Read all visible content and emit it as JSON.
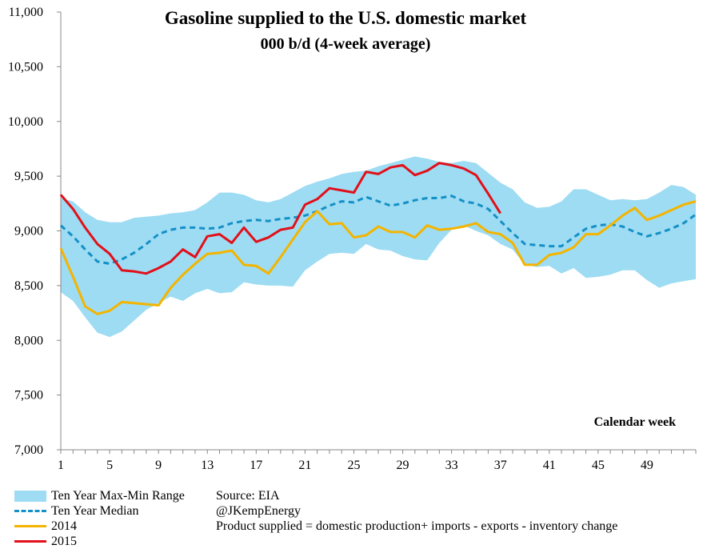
{
  "chart_data": {
    "type": "line",
    "title": "Gasoline supplied to the U.S. domestic market",
    "subtitle": "000 b/d (4-week average)",
    "xlabel": "Calendar week",
    "ylabel": "",
    "ylim": [
      7000,
      11000
    ],
    "xlim": [
      1,
      53
    ],
    "yticks": [
      "7,000",
      "7,500",
      "8,000",
      "8,500",
      "9,000",
      "9,500",
      "10,000",
      "10,500",
      "11,000"
    ],
    "ytick_values": [
      7000,
      7500,
      8000,
      8500,
      9000,
      9500,
      10000,
      10500,
      11000
    ],
    "xticks": [
      "1",
      "5",
      "9",
      "13",
      "17",
      "21",
      "25",
      "29",
      "33",
      "37",
      "41",
      "45",
      "49"
    ],
    "xtick_values": [
      1,
      5,
      9,
      13,
      17,
      21,
      25,
      29,
      33,
      37,
      41,
      45,
      49
    ],
    "grid": false,
    "legend_position": "bottom-left",
    "band": {
      "name": "Ten Year Max-Min Range",
      "color": "#9ddcf3",
      "x": [
        1,
        2,
        3,
        4,
        5,
        6,
        7,
        8,
        9,
        10,
        11,
        12,
        13,
        14,
        15,
        16,
        17,
        18,
        19,
        20,
        21,
        22,
        23,
        24,
        25,
        26,
        27,
        28,
        29,
        30,
        31,
        32,
        33,
        34,
        35,
        36,
        37,
        38,
        39,
        40,
        41,
        42,
        43,
        44,
        45,
        46,
        47,
        48,
        49,
        50,
        51,
        52,
        53
      ],
      "max": [
        9300,
        9270,
        9170,
        9100,
        9080,
        9080,
        9120,
        9130,
        9140,
        9160,
        9170,
        9190,
        9260,
        9350,
        9350,
        9330,
        9280,
        9260,
        9290,
        9350,
        9410,
        9450,
        9480,
        9520,
        9540,
        9550,
        9590,
        9620,
        9650,
        9680,
        9660,
        9630,
        9620,
        9640,
        9620,
        9530,
        9440,
        9380,
        9260,
        9210,
        9220,
        9270,
        9380,
        9380,
        9330,
        9280,
        9290,
        9280,
        9290,
        9350,
        9420,
        9400,
        9330
      ],
      "min": [
        8440,
        8360,
        8210,
        8070,
        8030,
        8080,
        8180,
        8280,
        8340,
        8400,
        8360,
        8430,
        8470,
        8430,
        8440,
        8530,
        8510,
        8500,
        8500,
        8490,
        8640,
        8720,
        8790,
        8800,
        8790,
        8880,
        8830,
        8820,
        8770,
        8740,
        8730,
        8890,
        9010,
        9050,
        9000,
        8960,
        8880,
        8830,
        8690,
        8670,
        8680,
        8610,
        8660,
        8570,
        8580,
        8600,
        8640,
        8640,
        8550,
        8480,
        8520,
        8540,
        8560
      ]
    },
    "series": [
      {
        "name": "Ten Year Median",
        "style": "dashed",
        "color": "#1590c6",
        "x": [
          1,
          2,
          3,
          4,
          5,
          6,
          7,
          8,
          9,
          10,
          11,
          12,
          13,
          14,
          15,
          16,
          17,
          18,
          19,
          20,
          21,
          22,
          23,
          24,
          25,
          26,
          27,
          28,
          29,
          30,
          31,
          32,
          33,
          34,
          35,
          36,
          37,
          38,
          39,
          40,
          41,
          42,
          43,
          44,
          45,
          46,
          47,
          48,
          49,
          50,
          51,
          52,
          53
        ],
        "values": [
          9050,
          8950,
          8830,
          8720,
          8700,
          8740,
          8800,
          8880,
          8970,
          9010,
          9030,
          9030,
          9020,
          9030,
          9070,
          9090,
          9100,
          9090,
          9110,
          9120,
          9140,
          9180,
          9230,
          9270,
          9260,
          9310,
          9270,
          9230,
          9250,
          9280,
          9300,
          9300,
          9320,
          9270,
          9250,
          9200,
          9090,
          8980,
          8880,
          8870,
          8860,
          8860,
          8940,
          9020,
          9050,
          9060,
          9040,
          8990,
          8950,
          8980,
          9020,
          9070,
          9150
        ]
      },
      {
        "name": "2014",
        "style": "solid",
        "color": "#f4b400",
        "x": [
          1,
          2,
          3,
          4,
          5,
          6,
          7,
          8,
          9,
          10,
          11,
          12,
          13,
          14,
          15,
          16,
          17,
          18,
          19,
          20,
          21,
          22,
          23,
          24,
          25,
          26,
          27,
          28,
          29,
          30,
          31,
          32,
          33,
          34,
          35,
          36,
          37,
          38,
          39,
          40,
          41,
          42,
          43,
          44,
          45,
          46,
          47,
          48,
          49,
          50,
          51,
          52,
          53
        ],
        "values": [
          8840,
          8580,
          8310,
          8240,
          8270,
          8350,
          8340,
          8330,
          8320,
          8480,
          8600,
          8700,
          8790,
          8800,
          8820,
          8690,
          8680,
          8610,
          8760,
          8920,
          9080,
          9180,
          9060,
          9070,
          8940,
          8960,
          9040,
          8990,
          8990,
          8940,
          9050,
          9010,
          9020,
          9040,
          9070,
          8990,
          8970,
          8890,
          8690,
          8690,
          8780,
          8800,
          8850,
          8970,
          8970,
          9050,
          9140,
          9210,
          9100,
          9140,
          9190,
          9240,
          9270
        ]
      },
      {
        "name": "2015",
        "style": "solid",
        "color": "#e2101a",
        "x": [
          1,
          2,
          3,
          4,
          5,
          6,
          7,
          8,
          9,
          10,
          11,
          12,
          13,
          14,
          15,
          16,
          17,
          18,
          19,
          20,
          21,
          22,
          23,
          24,
          25,
          26,
          27,
          28,
          29,
          30,
          31,
          32,
          33,
          34,
          35,
          36,
          37
        ],
        "values": [
          9330,
          9200,
          9030,
          8880,
          8790,
          8640,
          8630,
          8610,
          8660,
          8720,
          8830,
          8760,
          8950,
          8970,
          8890,
          9030,
          8900,
          8940,
          9010,
          9030,
          9240,
          9290,
          9390,
          9370,
          9350,
          9540,
          9520,
          9580,
          9600,
          9510,
          9550,
          9620,
          9600,
          9570,
          9510,
          9340,
          9160
        ]
      }
    ]
  },
  "notes": {
    "source": "Source: EIA",
    "handle": "@JKempEnergy",
    "definition": "Product supplied = domestic production+ imports - exports - inventory change"
  }
}
